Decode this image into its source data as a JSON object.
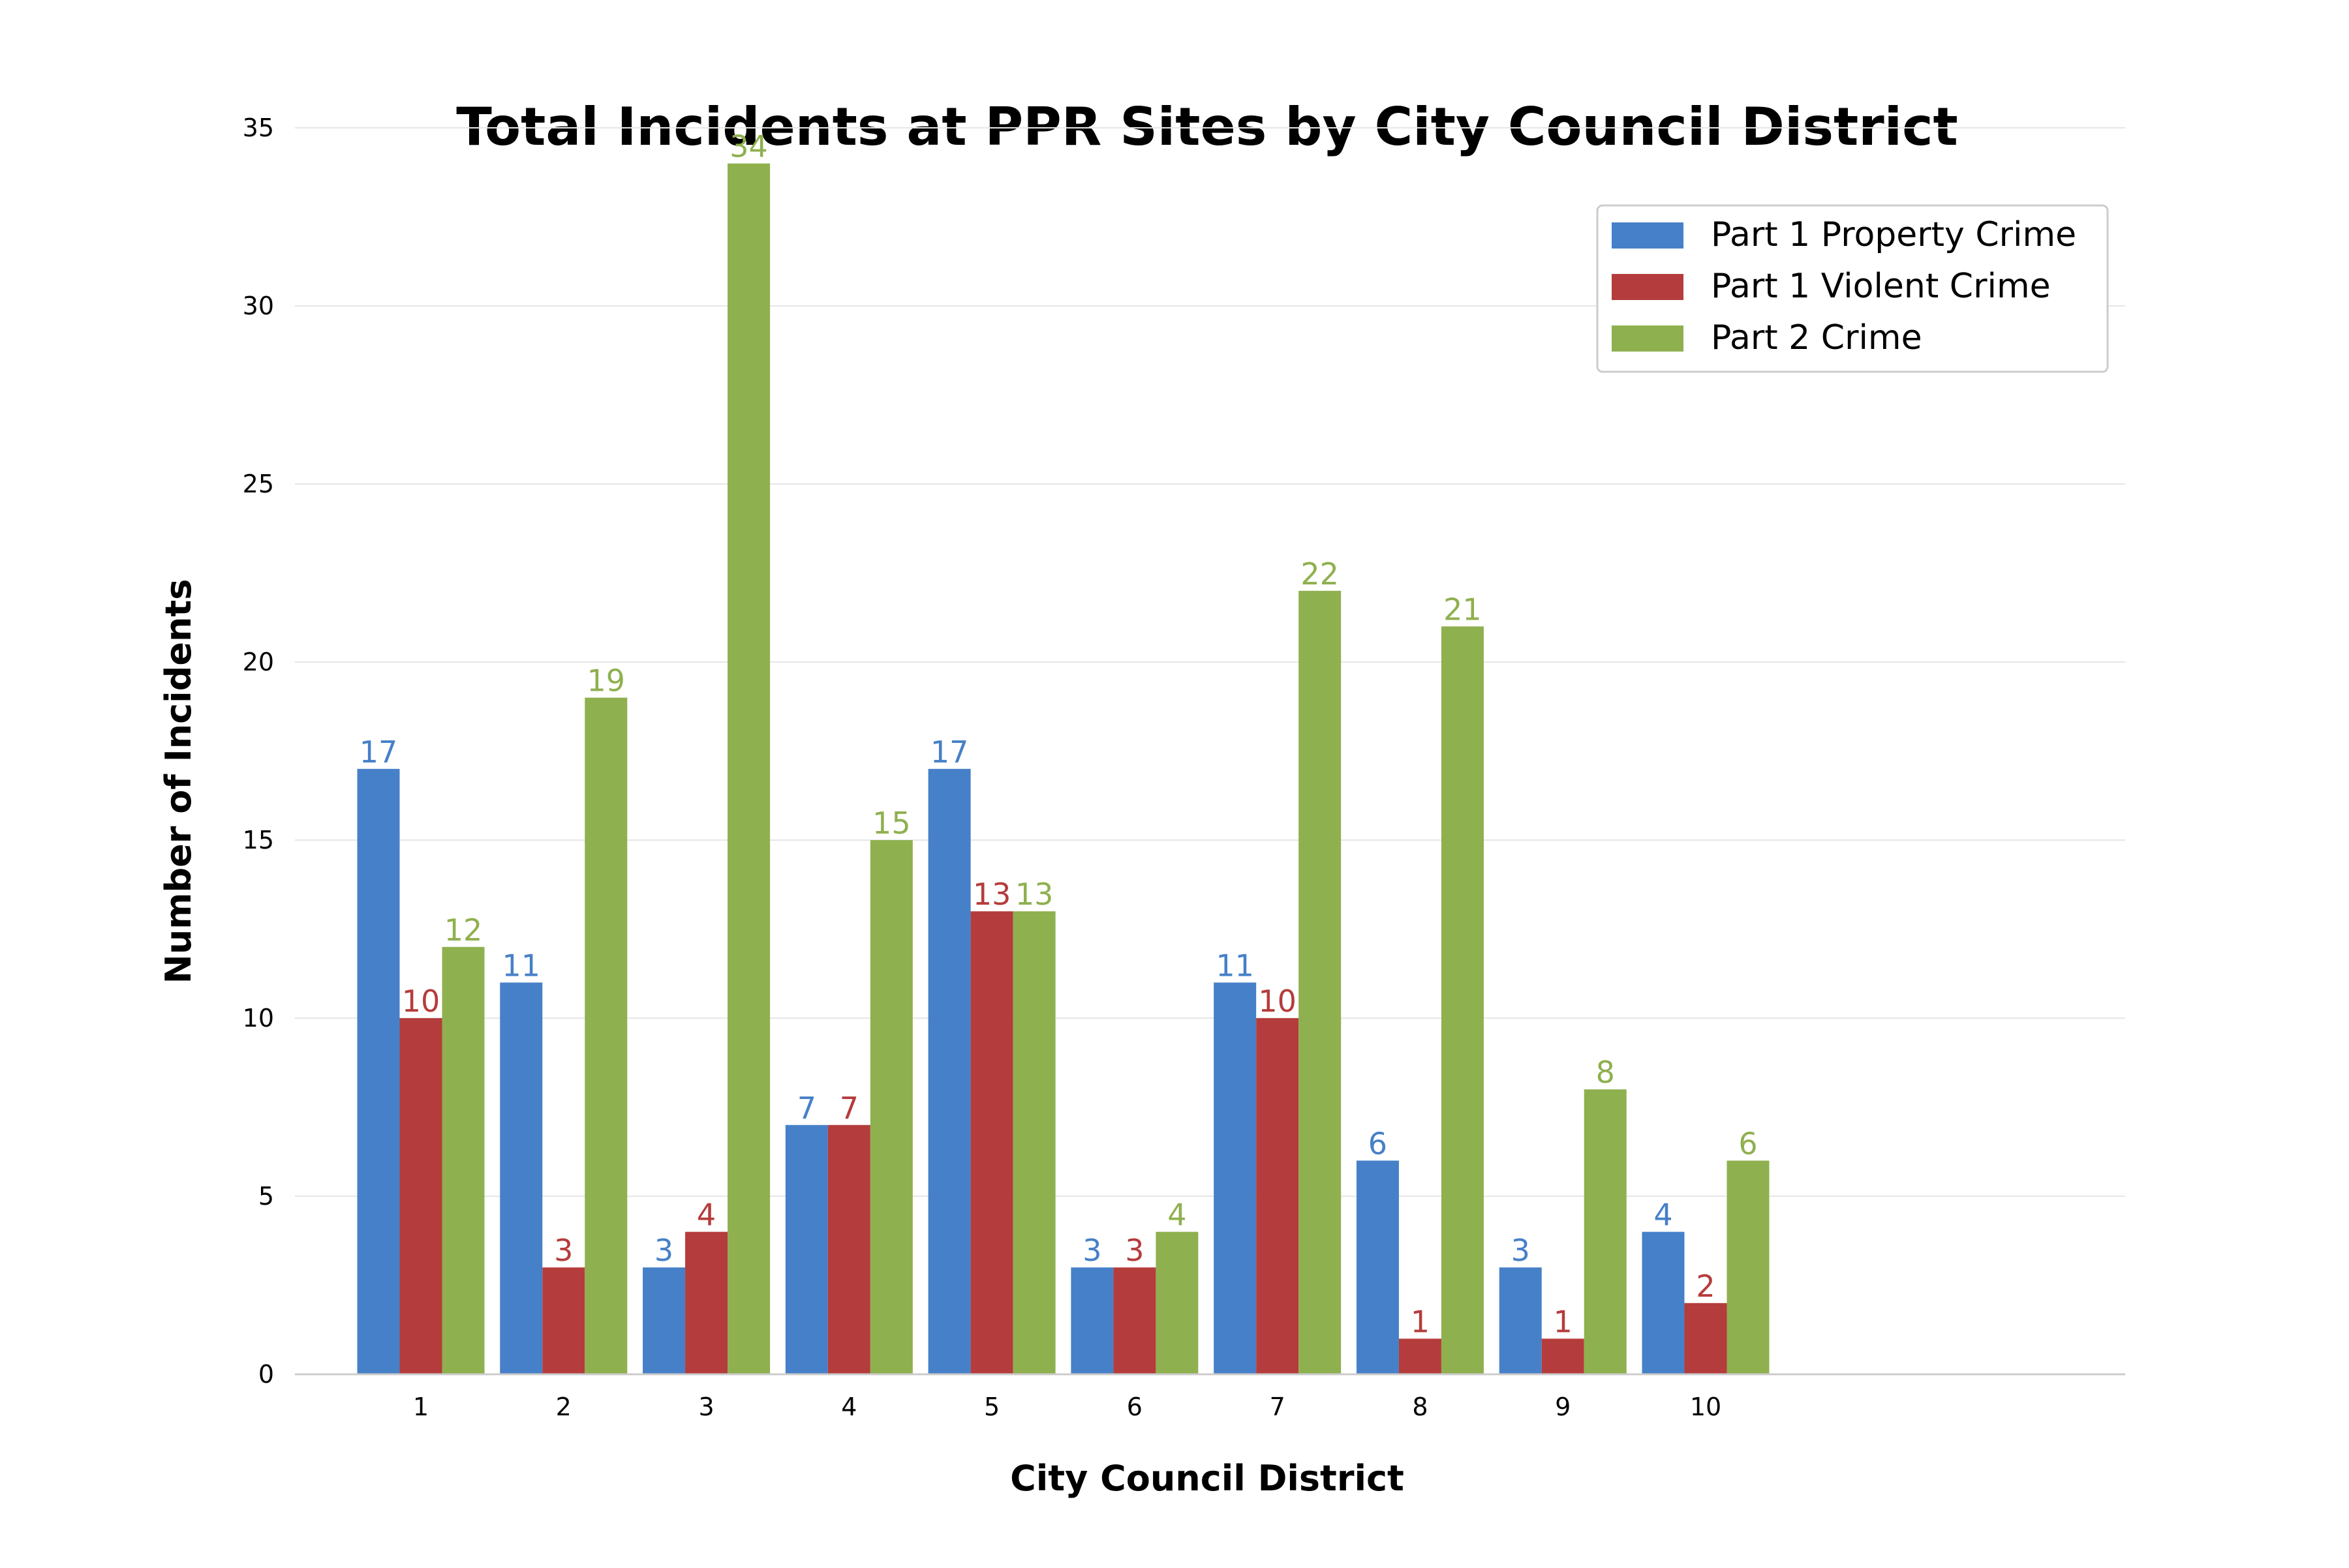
{
  "chart_data": {
    "type": "bar",
    "title": "Total Incidents at PPR Sites by City Council District",
    "xlabel": "City Council District",
    "ylabel": "Number of Incidents",
    "categories": [
      "1",
      "2",
      "3",
      "4",
      "5",
      "6",
      "7",
      "8",
      "9",
      "10"
    ],
    "series": [
      {
        "name": "Part 1 Property Crime",
        "color": "#4680C8",
        "values": [
          17,
          11,
          3,
          7,
          17,
          3,
          11,
          6,
          3,
          4
        ]
      },
      {
        "name": "Part 1 Violent Crime",
        "color": "#B53C3C",
        "values": [
          10,
          3,
          4,
          7,
          13,
          3,
          10,
          1,
          1,
          2
        ]
      },
      {
        "name": "Part 2 Crime",
        "color": "#8FB04F",
        "values": [
          12,
          19,
          34,
          15,
          13,
          4,
          22,
          21,
          8,
          6
        ]
      }
    ],
    "ylim": [
      0,
      35
    ],
    "yticks": [
      0,
      5,
      10,
      15,
      20,
      25,
      30,
      35
    ],
    "grid": true,
    "legend_position": "top-right",
    "data_labels": true
  }
}
